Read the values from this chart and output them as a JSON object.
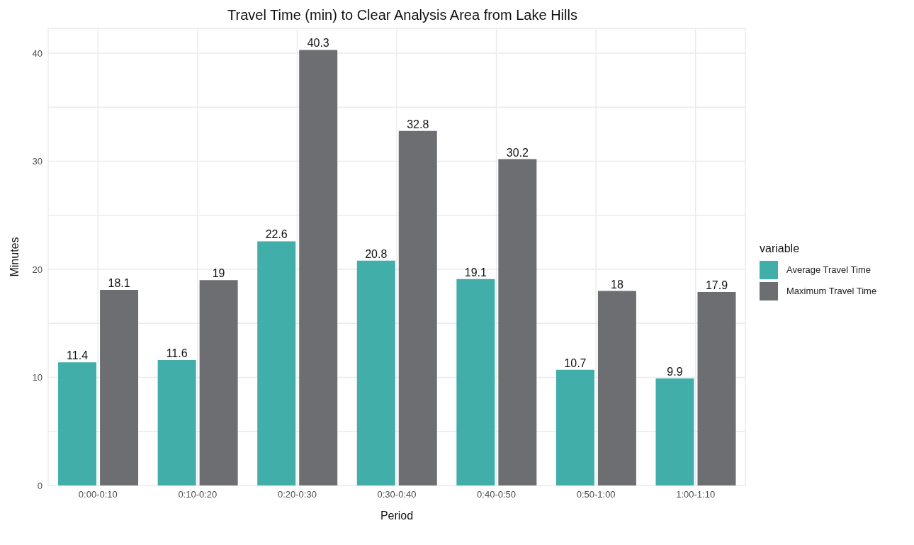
{
  "chart_data": {
    "type": "bar",
    "title": "Travel Time (min) to Clear Analysis Area from Lake Hills",
    "xlabel": "Period",
    "ylabel": "Minutes",
    "legend_title": "variable",
    "categories": [
      "0:00-0:10",
      "0:10-0:20",
      "0:20-0:30",
      "0:30-0:40",
      "0:40-0:50",
      "0:50-1:00",
      "1:00-1:10"
    ],
    "series": [
      {
        "name": "Average Travel Time",
        "color": "#41aea9",
        "values": [
          11.4,
          11.6,
          22.6,
          20.8,
          19.1,
          10.7,
          9.9
        ]
      },
      {
        "name": "Maximum Travel Time",
        "color": "#6d6e71",
        "values": [
          18.1,
          19,
          40.3,
          32.8,
          30.2,
          18,
          17.9
        ]
      }
    ],
    "ylim": [
      0,
      42.3
    ],
    "yticks": [
      0,
      {
        "value": 5,
        "label": null
      },
      10,
      {
        "value": 15,
        "label": null
      },
      20,
      {
        "value": 25,
        "label": null
      },
      30,
      {
        "value": 35,
        "label": null
      },
      40
    ],
    "grid": true,
    "legend": "right",
    "data_labels": true
  }
}
